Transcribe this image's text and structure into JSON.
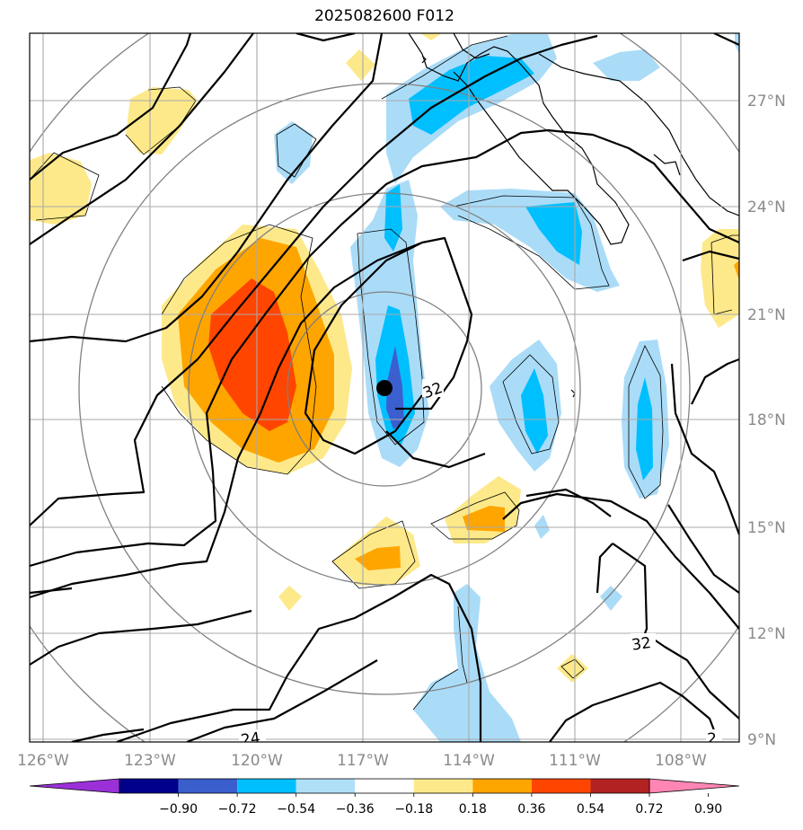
{
  "title": "2025082600 F012",
  "map": {
    "lon_ticks": [
      "126°W",
      "123°W",
      "120°W",
      "117°W",
      "114°W",
      "111°W",
      "108°W"
    ],
    "lat_ticks": [
      "27°N",
      "24°N",
      "21°N",
      "18°N",
      "15°N",
      "12°N",
      "9°N"
    ],
    "contour_labels": [
      "32",
      "32",
      "24",
      "2"
    ],
    "storm_marker": "black-dot",
    "range_rings": "concentric-circles",
    "fill_colors": {
      "pos_1": "#fde98a",
      "pos_2": "#ffa500",
      "pos_3": "#ff4500",
      "neg_1": "#aadcf8",
      "neg_2": "#00bfff",
      "neg_3": "#3c5fd0"
    }
  },
  "colorbar": {
    "ticks": [
      "−0.90",
      "−0.72",
      "−0.54",
      "−0.36",
      "−0.18",
      "0.18",
      "0.36",
      "0.54",
      "0.72",
      "0.90"
    ],
    "colors": [
      "#9b30d9",
      "#00008b",
      "#3a5fcd",
      "#00bfff",
      "#b0e0f8",
      "#ffffff",
      "#fde98a",
      "#ffa500",
      "#ff4500",
      "#b22222",
      "#ff86b4"
    ]
  }
}
